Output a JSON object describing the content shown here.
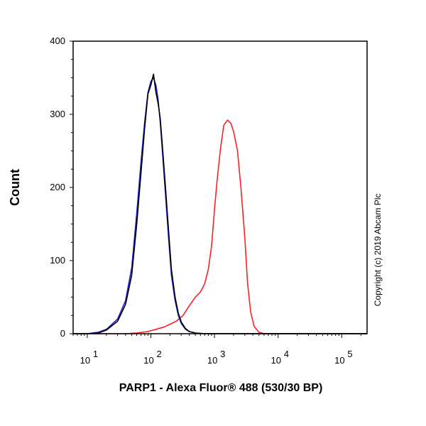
{
  "chart_data": {
    "type": "line",
    "xlabel": "PARP1 - Alexa Fluor® 488 (530/30 BP)",
    "ylabel": "Count",
    "x_scale": "log",
    "xlim": [
      6,
      250000
    ],
    "ylim": [
      0,
      400
    ],
    "y_ticks": [
      0,
      100,
      200,
      300,
      400
    ],
    "x_ticks": [
      {
        "value": 10,
        "base": "10",
        "exp": "1"
      },
      {
        "value": 100,
        "base": "10",
        "exp": "2"
      },
      {
        "value": 1000,
        "base": "10",
        "exp": "3"
      },
      {
        "value": 10000,
        "base": "10",
        "exp": "4"
      },
      {
        "value": 100000,
        "base": "10",
        "exp": "5"
      }
    ],
    "grid": false,
    "legend": "none",
    "annotation": "Copyright (c) 2019 Abcam Plc",
    "series": [
      {
        "color": "#ff2020",
        "x": [
          6,
          40,
          60,
          90,
          120,
          160,
          200,
          250,
          320,
          400,
          500,
          600,
          700,
          800,
          900,
          1000,
          1100,
          1250,
          1400,
          1600,
          1800,
          2000,
          2300,
          2600,
          3000,
          3300,
          3700,
          4200,
          5000,
          6000,
          10000,
          100000,
          250000
        ],
        "y": [
          0,
          0,
          1,
          3,
          6,
          9,
          13,
          17,
          25,
          38,
          50,
          57,
          68,
          88,
          120,
          170,
          210,
          255,
          285,
          292,
          288,
          276,
          250,
          200,
          130,
          70,
          30,
          10,
          2,
          0,
          0,
          0,
          0
        ]
      },
      {
        "color": "#2020d0",
        "x": [
          6,
          10,
          15,
          20,
          30,
          40,
          50,
          60,
          70,
          80,
          90,
          100,
          110,
          120,
          130,
          140,
          150,
          170,
          190,
          210,
          240,
          270,
          300,
          350,
          400,
          500,
          700,
          250000
        ],
        "y": [
          0,
          0,
          2,
          6,
          20,
          45,
          90,
          165,
          235,
          290,
          330,
          345,
          350,
          340,
          320,
          290,
          255,
          190,
          130,
          80,
          45,
          25,
          14,
          6,
          3,
          1,
          0,
          0
        ]
      },
      {
        "color": "#000000",
        "x": [
          6,
          10,
          15,
          20,
          30,
          40,
          50,
          60,
          70,
          80,
          90,
          100,
          110,
          120,
          130,
          140,
          150,
          170,
          190,
          210,
          240,
          270,
          300,
          350,
          400,
          500,
          700,
          250000
        ],
        "y": [
          0,
          0,
          1,
          5,
          17,
          40,
          80,
          150,
          220,
          282,
          328,
          340,
          355,
          330,
          315,
          295,
          262,
          200,
          140,
          88,
          50,
          28,
          16,
          7,
          3,
          1,
          0,
          0
        ]
      }
    ]
  }
}
